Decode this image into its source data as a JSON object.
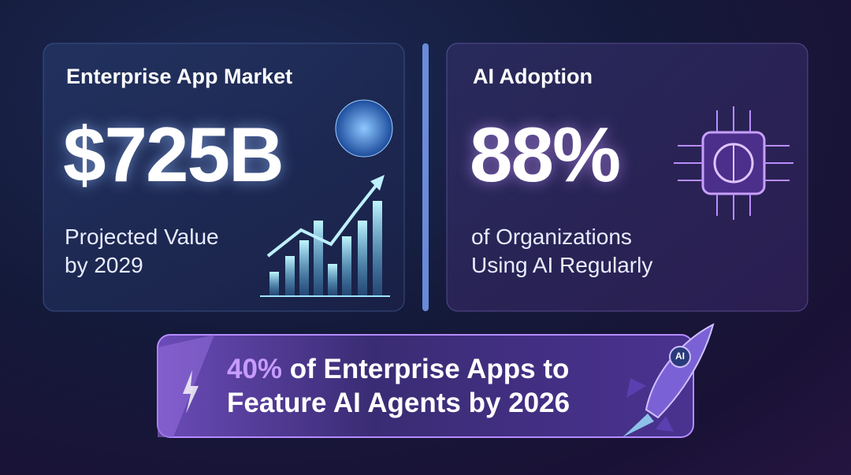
{
  "cards": [
    {
      "title": "Enterprise App Market",
      "value": "$725B",
      "caption": [
        "Projected Value",
        "by 2029"
      ]
    },
    {
      "title": "AI Adoption",
      "value": "88%",
      "caption": [
        "of Organizations",
        "Using AI Regularly"
      ]
    }
  ],
  "banner": {
    "highlight": "40%",
    "lines": [
      "of Enterprise Apps to",
      "Feature AI Agents by 2026"
    ]
  },
  "rocket": {
    "label": "AI"
  }
}
